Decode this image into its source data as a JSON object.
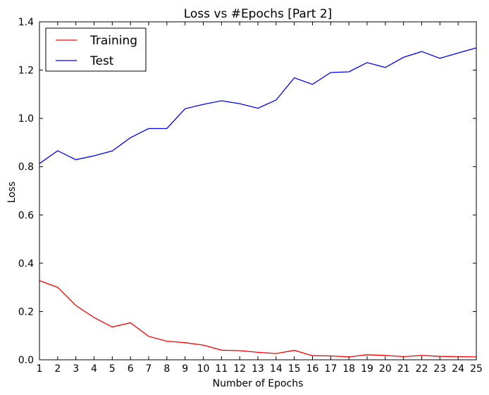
{
  "chart_data": {
    "type": "line",
    "title": "Loss vs #Epochs [Part 2]",
    "xlabel": "Number of Epochs",
    "ylabel": "Loss",
    "x": [
      1,
      2,
      3,
      4,
      5,
      6,
      7,
      8,
      9,
      10,
      11,
      12,
      13,
      14,
      15,
      16,
      17,
      18,
      19,
      20,
      21,
      22,
      23,
      24,
      25
    ],
    "xlim": [
      1,
      25
    ],
    "ylim": [
      0,
      1.4
    ],
    "yticks": [
      "0.0",
      "0.2",
      "0.4",
      "0.6",
      "0.8",
      "1.0",
      "1.2",
      "1.4"
    ],
    "xticks": [
      "1",
      "2",
      "3",
      "4",
      "5",
      "6",
      "7",
      "8",
      "9",
      "10",
      "11",
      "12",
      "13",
      "14",
      "15",
      "16",
      "17",
      "18",
      "19",
      "20",
      "21",
      "22",
      "23",
      "24",
      "25"
    ],
    "grid": false,
    "legend_position": "top-left",
    "series": [
      {
        "name": "Training",
        "color": "#ff0000",
        "values": [
          0.328,
          0.3,
          0.225,
          0.175,
          0.136,
          0.153,
          0.097,
          0.077,
          0.071,
          0.061,
          0.04,
          0.038,
          0.031,
          0.026,
          0.039,
          0.017,
          0.016,
          0.012,
          0.021,
          0.018,
          0.013,
          0.018,
          0.014,
          0.013,
          0.012
        ]
      },
      {
        "name": "Test",
        "color": "#0000ff",
        "values": [
          0.813,
          0.866,
          0.829,
          0.845,
          0.865,
          0.92,
          0.958,
          0.958,
          1.04,
          1.058,
          1.073,
          1.061,
          1.042,
          1.076,
          1.168,
          1.141,
          1.19,
          1.193,
          1.231,
          1.211,
          1.253,
          1.277,
          1.249,
          1.271,
          1.292
        ]
      }
    ]
  }
}
